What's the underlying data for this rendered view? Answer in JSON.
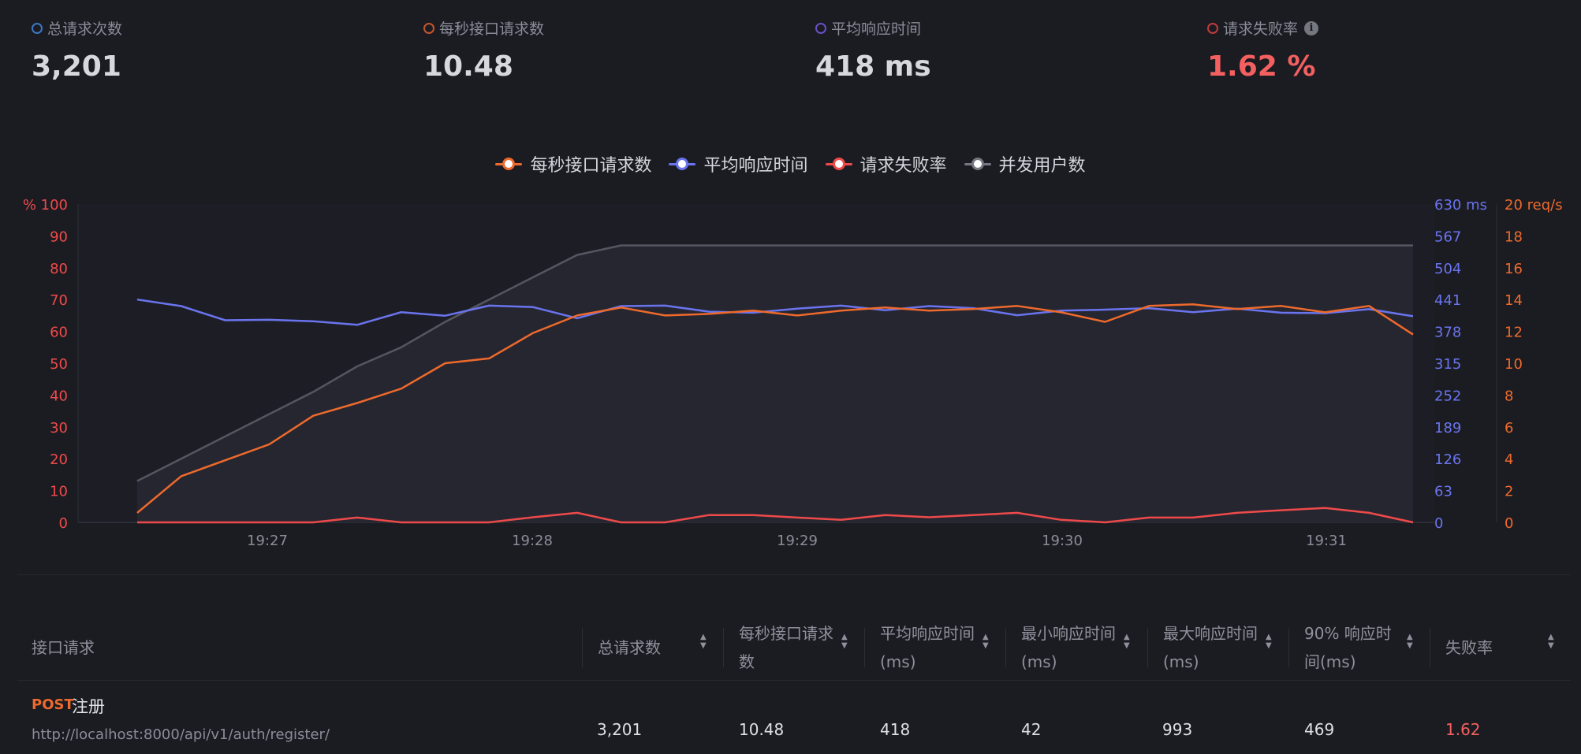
{
  "stats": [
    {
      "label": "总请求次数",
      "value": "3,201",
      "color": "#3b77c4"
    },
    {
      "label": "每秒接口请求数",
      "value": "10.48",
      "color": "#c6552a"
    },
    {
      "label": "平均响应时间",
      "value": "418 ms",
      "color": "#6a4fc4"
    },
    {
      "label": "请求失败率",
      "value": "1.62 %",
      "color": "#c23a3a",
      "info_icon": "info-icon"
    }
  ],
  "colors": {
    "rps": "#ee6a2c",
    "response": "#6a74ee",
    "failure": "#ef4a4a",
    "users": "#64656f",
    "value_red": "#f46060"
  },
  "chart_data": {
    "type": "line",
    "x_ticks": [
      "19:27",
      "19:28",
      "19:29",
      "19:30",
      "19:31"
    ],
    "left_axis": {
      "unit": "%",
      "range": [
        0,
        100
      ],
      "ticks": [
        "0",
        "10",
        "20",
        "30",
        "40",
        "50",
        "60",
        "70",
        "80",
        "90",
        "100"
      ],
      "top_label": "% 100"
    },
    "mid_axis": {
      "unit": "ms",
      "range": [
        0,
        630
      ],
      "ticks": [
        "0",
        "63",
        "126",
        "189",
        "252",
        "315",
        "378",
        "441",
        "504",
        "567"
      ],
      "top_label": "630 ms"
    },
    "right_axis": {
      "unit": "req/s",
      "range": [
        0,
        20
      ],
      "ticks": [
        "0",
        "2",
        "4",
        "6",
        "8",
        "10",
        "12",
        "14",
        "16",
        "18"
      ],
      "top_label": "20 req/s"
    },
    "grid": false,
    "legend_position": "top-center",
    "series": [
      {
        "name": "每秒接口请求数",
        "axis": "right",
        "color": "#ee6a2c",
        "values": [
          0.6,
          2.9,
          3.9,
          4.9,
          6.7,
          7.5,
          8.4,
          10.0,
          10.3,
          11.9,
          13.0,
          13.5,
          13.0,
          13.1,
          13.3,
          13.0,
          13.3,
          13.5,
          13.3,
          13.4,
          13.6,
          13.2,
          12.6,
          13.6,
          13.7,
          13.4,
          13.6,
          13.2,
          13.6,
          11.8
        ]
      },
      {
        "name": "平均响应时间",
        "axis": "mid",
        "color": "#6a74ee",
        "values": [
          441,
          428,
          400,
          401,
          398,
          391,
          416,
          409,
          429,
          426,
          404,
          428,
          429,
          417,
          415,
          423,
          429,
          420,
          428,
          424,
          410,
          419,
          421,
          424,
          416,
          423,
          415,
          414,
          422,
          408
        ]
      },
      {
        "name": "请求失败率",
        "axis": "left",
        "color": "#ef4a4a",
        "values": [
          0,
          0,
          0,
          0,
          0,
          1.5,
          0,
          0,
          0,
          1.6,
          3.0,
          0,
          0,
          2.3,
          2.3,
          1.5,
          0.8,
          2.3,
          1.6,
          2.3,
          3.0,
          0.8,
          0,
          1.5,
          1.5,
          3.0,
          3.8,
          4.5,
          3.0,
          0
        ]
      },
      {
        "name": "并发用户数",
        "axis": "left",
        "color": "#64656f",
        "area": true,
        "values": [
          13,
          20,
          27,
          34,
          41,
          49,
          55,
          63,
          70,
          77,
          84,
          87,
          87,
          87,
          87,
          87,
          87,
          87,
          87,
          87,
          87,
          87,
          87,
          87,
          87,
          87,
          87,
          87,
          87,
          87
        ]
      }
    ]
  },
  "table": {
    "headers": [
      {
        "label": "接口请求",
        "sortable": false
      },
      {
        "label": "总请求数",
        "sortable": true
      },
      {
        "label": "每秒接口请求数",
        "sortable": true
      },
      {
        "label": "平均响应时间(ms)",
        "sortable": true
      },
      {
        "label": "最小响应时间(ms)",
        "sortable": true
      },
      {
        "label": "最大响应时间(ms)",
        "sortable": true
      },
      {
        "label": "90% 响应时间(ms)",
        "sortable": true
      },
      {
        "label": "失败率",
        "sortable": true
      }
    ],
    "rows": [
      {
        "method": "POST",
        "name": "注册",
        "url": "http://localhost:8000/api/v1/auth/register/",
        "total": "3,201",
        "rps": "10.48",
        "avg": "418",
        "min": "42",
        "max": "993",
        "p90": "469",
        "fail": "1.62"
      }
    ]
  }
}
